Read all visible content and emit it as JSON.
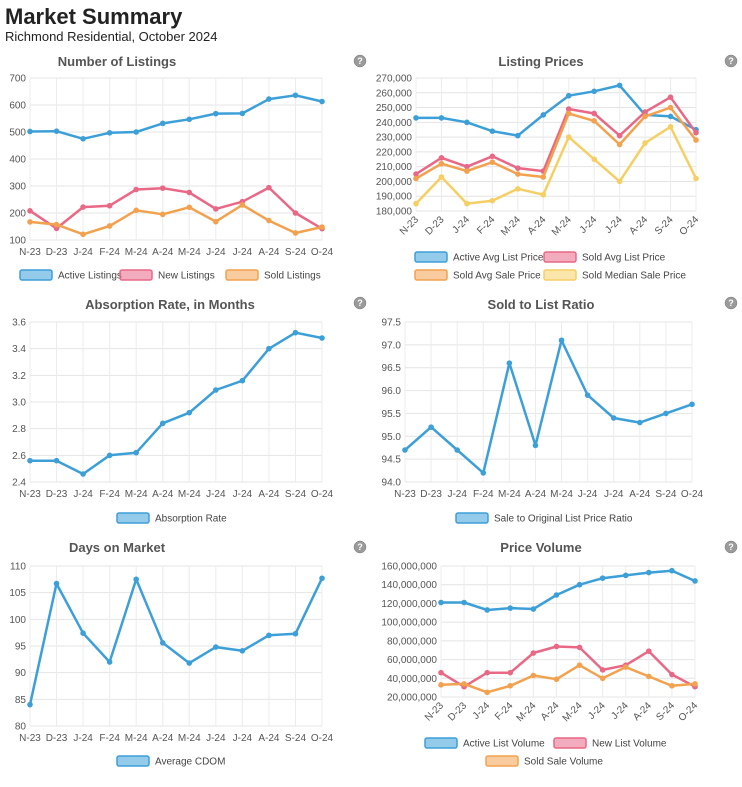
{
  "header": {
    "title": "Market Summary",
    "subtitle": "Richmond Residential, October 2024"
  },
  "help_icon": "help-question-icon",
  "colors": {
    "blue": "#3d9fd8",
    "pink": "#e96886",
    "orange": "#f2a24f",
    "yellow": "#f6cf64"
  },
  "months": [
    "N-23",
    "D-23",
    "J-24",
    "F-24",
    "M-24",
    "A-24",
    "M-24",
    "J-24",
    "J-24",
    "A-24",
    "S-24",
    "O-24"
  ],
  "chart_data": [
    {
      "type": "line",
      "title": "Number of Listings",
      "ylim": [
        100,
        700
      ],
      "yticks": [
        "100",
        "200",
        "300",
        "400",
        "500",
        "600",
        "700"
      ],
      "grid": true,
      "legend_position": "bottom",
      "series": [
        {
          "name": "Active Listings",
          "color": "#3d9fd8",
          "values": [
            502,
            503,
            475,
            497,
            500,
            532,
            547,
            568,
            569,
            622,
            636,
            613
          ]
        },
        {
          "name": "New Listings",
          "color": "#e96886",
          "values": [
            208,
            143,
            222,
            227,
            287,
            292,
            276,
            215,
            242,
            294,
            200,
            142
          ]
        },
        {
          "name": "Sold Listings",
          "color": "#f2a24f",
          "values": [
            167,
            157,
            121,
            152,
            210,
            195,
            221,
            168,
            230,
            172,
            126,
            148
          ]
        }
      ]
    },
    {
      "type": "line",
      "title": "Listing Prices",
      "ylim": [
        180000,
        270000
      ],
      "yticks": [
        "180,000",
        "190,000",
        "200,000",
        "210,000",
        "220,000",
        "230,000",
        "240,000",
        "250,000",
        "260,000",
        "270,000"
      ],
      "grid": true,
      "legend_position": "bottom",
      "rotated_x_labels": true,
      "series": [
        {
          "name": "Active Avg List Price",
          "color": "#3d9fd8",
          "values": [
            243000,
            243000,
            240000,
            234000,
            231000,
            245000,
            258000,
            261000,
            265000,
            245000,
            244000,
            235000
          ]
        },
        {
          "name": "Sold Avg List Price",
          "color": "#e96886",
          "values": [
            205000,
            216000,
            210000,
            217000,
            209000,
            207000,
            249000,
            246000,
            231000,
            247000,
            257000,
            233000
          ]
        },
        {
          "name": "Sold Avg Sale Price",
          "color": "#f2a24f",
          "values": [
            202000,
            212000,
            207000,
            213000,
            205000,
            203000,
            246000,
            241000,
            225000,
            244000,
            250000,
            228000
          ]
        },
        {
          "name": "Sold Median Sale Price",
          "color": "#f6cf64",
          "values": [
            185000,
            203000,
            185000,
            187000,
            195000,
            191000,
            230000,
            215000,
            200000,
            226000,
            237000,
            202000
          ]
        }
      ]
    },
    {
      "type": "line",
      "title": "Absorption Rate, in Months",
      "ylim": [
        2.4,
        3.6
      ],
      "yticks": [
        "2.4",
        "2.6",
        "2.8",
        "3.0",
        "3.2",
        "3.4",
        "3.6"
      ],
      "grid": true,
      "legend_position": "bottom",
      "series": [
        {
          "name": "Absorption Rate",
          "color": "#3d9fd8",
          "values": [
            2.56,
            2.56,
            2.46,
            2.6,
            2.62,
            2.84,
            2.92,
            3.09,
            3.16,
            3.4,
            3.52,
            3.48
          ]
        }
      ]
    },
    {
      "type": "line",
      "title": "Sold to List Ratio",
      "ylim": [
        94.0,
        97.5
      ],
      "yticks": [
        "94.0",
        "94.5",
        "95.0",
        "95.5",
        "96.0",
        "96.5",
        "97.0",
        "97.5"
      ],
      "grid": true,
      "legend_position": "bottom",
      "series": [
        {
          "name": "Sale to Original List Price Ratio",
          "color": "#3d9fd8",
          "values": [
            94.7,
            95.2,
            94.7,
            94.2,
            96.6,
            94.8,
            97.1,
            95.9,
            95.4,
            95.3,
            95.5,
            95.7
          ]
        }
      ]
    },
    {
      "type": "line",
      "title": "Days on Market",
      "ylim": [
        80,
        110
      ],
      "yticks": [
        "80",
        "85",
        "90",
        "95",
        "100",
        "105",
        "110"
      ],
      "grid": true,
      "legend_position": "bottom",
      "series": [
        {
          "name": "Average CDOM",
          "color": "#3d9fd8",
          "values": [
            84,
            106.7,
            97.4,
            92,
            107.5,
            95.6,
            91.8,
            94.8,
            94.1,
            97,
            97.3,
            107.7
          ]
        }
      ]
    },
    {
      "type": "line",
      "title": "Price Volume",
      "ylim": [
        20000000,
        160000000
      ],
      "yticks": [
        "20,000,000",
        "40,000,000",
        "60,000,000",
        "80,000,000",
        "100,000,000",
        "120,000,000",
        "140,000,000",
        "160,000,000"
      ],
      "grid": true,
      "legend_position": "bottom",
      "rotated_x_labels": true,
      "series": [
        {
          "name": "Active List Volume",
          "color": "#3d9fd8",
          "values": [
            121000000,
            121000000,
            113000000,
            115000000,
            114000000,
            129000000,
            140000000,
            147000000,
            150000000,
            153000000,
            155000000,
            144000000
          ]
        },
        {
          "name": "New List Volume",
          "color": "#e96886",
          "values": [
            46000000,
            31000000,
            46000000,
            46000000,
            67000000,
            74000000,
            73000000,
            49000000,
            54000000,
            69000000,
            44000000,
            31000000
          ]
        },
        {
          "name": "Sold Sale Volume",
          "color": "#f2a24f",
          "values": [
            33000000,
            34000000,
            25000000,
            32000000,
            43000000,
            39000000,
            54000000,
            40000000,
            52000000,
            42000000,
            32000000,
            34000000
          ]
        }
      ]
    }
  ]
}
